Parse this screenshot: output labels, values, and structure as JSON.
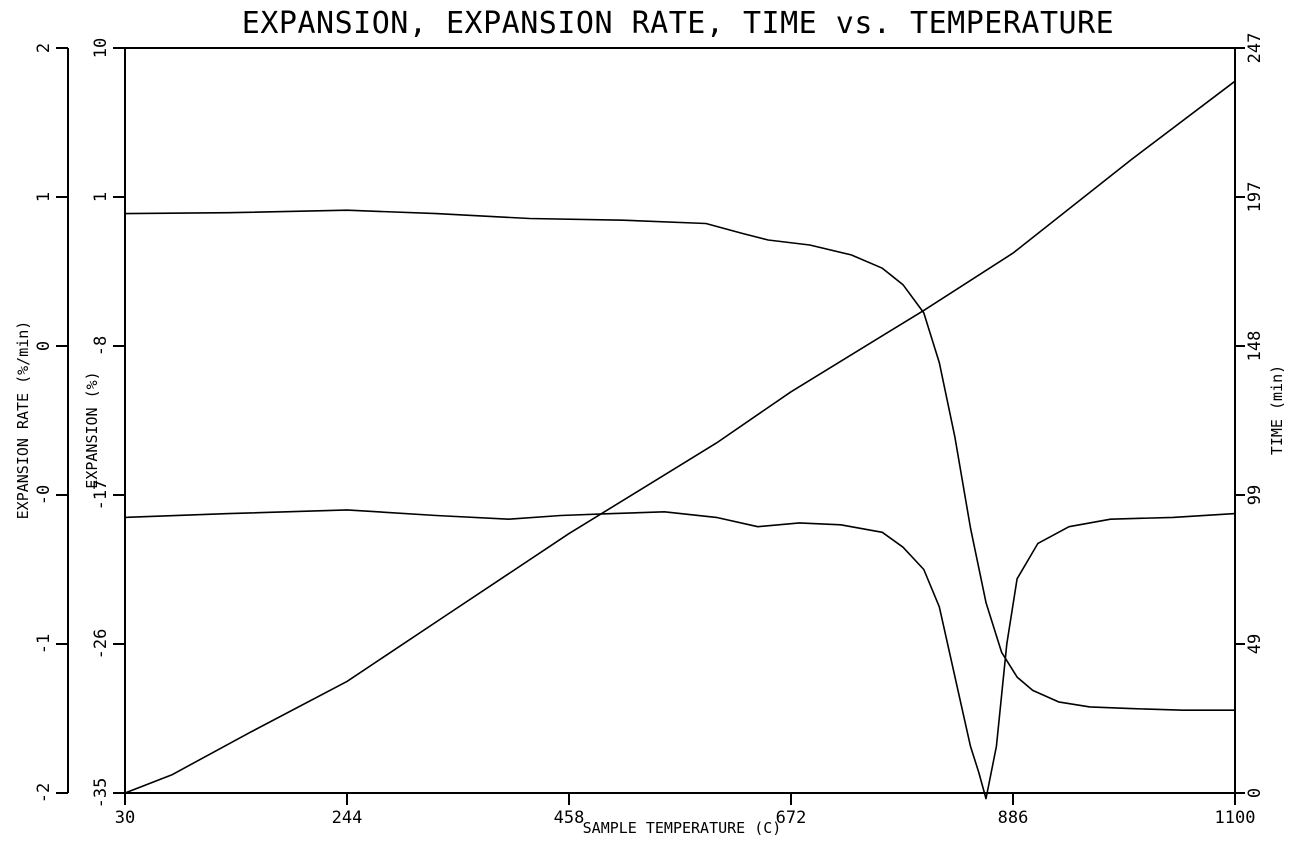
{
  "chart_data": {
    "type": "line",
    "title": "EXPANSION, EXPANSION RATE, TIME vs. TEMPERATURE",
    "xlabel": "SAMPLE TEMPERATURE (C)",
    "xlim": [
      30,
      1100
    ],
    "xticks": [
      "30",
      "244",
      "458",
      "672",
      "886",
      "1100"
    ],
    "grid": false,
    "axes": {
      "rate": {
        "label": "EXPANSION RATE (%/min)",
        "ylim": [
          -2,
          2
        ],
        "ticks": [
          "-2",
          "-1",
          "-0",
          "0",
          "1",
          "2"
        ]
      },
      "expansion": {
        "label": "EXPANSION (%)",
        "ylim": [
          -35,
          10
        ],
        "ticks": [
          "-35",
          "-26",
          "-17",
          "-8",
          "1",
          "10"
        ]
      },
      "time": {
        "label": "TIME (min)",
        "ylim": [
          0,
          247
        ],
        "ticks": [
          "0",
          "49",
          "99",
          "148",
          "197",
          "247"
        ]
      }
    },
    "series": [
      {
        "axis": "expansion",
        "x": [
          30,
          130,
          244,
          330,
          420,
          510,
          590,
          625,
          650,
          690,
          730,
          760,
          780,
          800,
          815,
          830,
          845,
          860,
          875,
          890,
          905,
          930,
          960,
          1000,
          1050,
          1100
        ],
        "y": [
          0.0,
          0.05,
          0.2,
          0.0,
          -0.3,
          -0.4,
          -0.6,
          -1.2,
          -1.6,
          -1.9,
          -2.5,
          -3.3,
          -4.3,
          -6.0,
          -9.0,
          -13.5,
          -19.0,
          -23.5,
          -26.5,
          -28.0,
          -28.8,
          -29.5,
          -29.8,
          -29.9,
          -30.0,
          -30.0
        ]
      },
      {
        "axis": "rate",
        "x": [
          30,
          130,
          244,
          330,
          400,
          450,
          500,
          550,
          600,
          640,
          680,
          720,
          760,
          780,
          800,
          815,
          825,
          835,
          845,
          853,
          860,
          870,
          880,
          890,
          910,
          940,
          980,
          1040,
          1100
        ],
        "y": [
          -0.52,
          -0.5,
          -0.48,
          -0.51,
          -0.53,
          -0.51,
          -0.5,
          -0.49,
          -0.52,
          -0.57,
          -0.55,
          -0.56,
          -0.6,
          -0.68,
          -0.8,
          -1.0,
          -1.25,
          -1.5,
          -1.75,
          -1.89,
          -2.03,
          -1.75,
          -1.2,
          -0.85,
          -0.66,
          -0.57,
          -0.53,
          -0.52,
          -0.5
        ]
      },
      {
        "axis": "time",
        "x": [
          30,
          75,
          150,
          244,
          340,
          458,
          600,
          672,
          800,
          886,
          1000,
          1100
        ],
        "y": [
          0,
          6,
          20,
          37,
          59,
          86,
          116,
          133,
          160,
          179,
          210,
          236
        ]
      }
    ]
  }
}
